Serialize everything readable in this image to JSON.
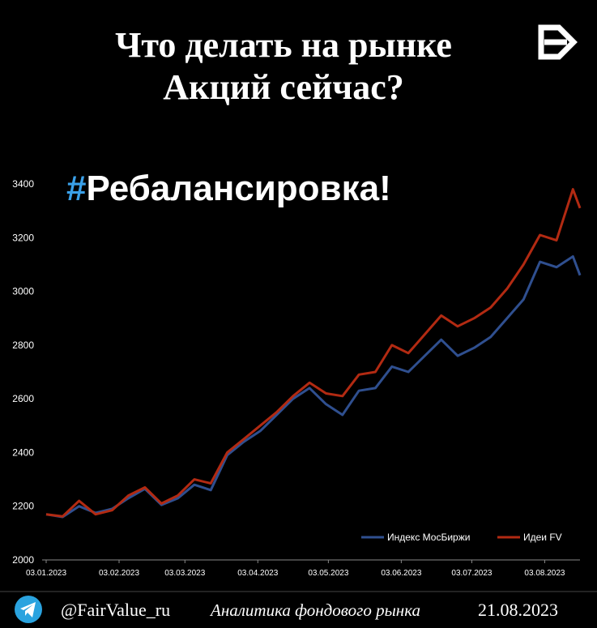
{
  "header": {
    "title_line1": "Что делать на рынке",
    "title_line2": "Акций сейчас?",
    "hashtag": "#",
    "subtitle": "Ребалансировка!"
  },
  "footer": {
    "handle": "@FairValue_ru",
    "tagline": "Аналитика фондового рынка",
    "date": "21.08.2023"
  },
  "chart_data": {
    "type": "line",
    "x": [
      "03.01.2023",
      "10.01.2023",
      "17.01.2023",
      "24.01.2023",
      "31.01.2023",
      "07.02.2023",
      "14.02.2023",
      "21.02.2023",
      "28.02.2023",
      "07.03.2023",
      "14.03.2023",
      "21.03.2023",
      "28.03.2023",
      "04.04.2023",
      "11.04.2023",
      "18.04.2023",
      "25.04.2023",
      "02.05.2023",
      "09.05.2023",
      "16.05.2023",
      "23.05.2023",
      "30.05.2023",
      "06.06.2023",
      "13.06.2023",
      "20.06.2023",
      "27.06.2023",
      "04.07.2023",
      "11.07.2023",
      "18.07.2023",
      "25.07.2023",
      "01.08.2023",
      "08.08.2023",
      "15.08.2023",
      "18.08.2023"
    ],
    "series": [
      {
        "name": "Индекс МосБиржи",
        "color": "#2f4f8f",
        "values": [
          2170,
          2160,
          2200,
          2175,
          2190,
          2230,
          2265,
          2205,
          2230,
          2280,
          2260,
          2390,
          2440,
          2480,
          2540,
          2600,
          2640,
          2580,
          2540,
          2630,
          2640,
          2720,
          2700,
          2760,
          2820,
          2760,
          2790,
          2830,
          2900,
          2970,
          3110,
          3090,
          3130,
          3060
        ]
      },
      {
        "name": "Идеи FV",
        "color": "#b22a12",
        "values": [
          2170,
          2162,
          2220,
          2170,
          2185,
          2240,
          2270,
          2210,
          2240,
          2300,
          2285,
          2400,
          2450,
          2500,
          2550,
          2610,
          2660,
          2620,
          2610,
          2690,
          2700,
          2800,
          2770,
          2840,
          2910,
          2870,
          2900,
          2940,
          3010,
          3100,
          3210,
          3190,
          3380,
          3310
        ]
      }
    ],
    "xlim": [
      "03.01.2023",
      "18.08.2023"
    ],
    "xticks": [
      "03.01.2023",
      "03.02.2023",
      "03.03.2023",
      "03.04.2023",
      "03.05.2023",
      "03.06.2023",
      "03.07.2023",
      "03.08.2023"
    ],
    "ylim": [
      2000,
      3400
    ],
    "yticks": [
      2000,
      2200,
      2400,
      2600,
      2800,
      3000,
      3200,
      3400
    ],
    "legend": "lower right"
  }
}
